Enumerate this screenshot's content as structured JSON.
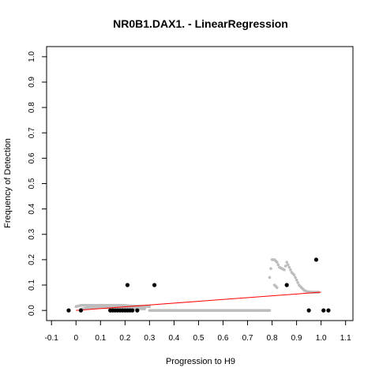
{
  "chart_data": {
    "type": "scatter",
    "title": "NR0B1.DAX1. - LinearRegression",
    "xlabel": "Progression to H9",
    "ylabel": "Frequency of Detection",
    "xlim": [
      -0.12,
      1.13
    ],
    "ylim": [
      -0.04,
      1.04
    ],
    "x_ticks": [
      "-0.1",
      "0",
      "0.1",
      "0.2",
      "0.3",
      "0.4",
      "0.5",
      "0.6",
      "0.7",
      "0.8",
      "0.9",
      "1.0",
      "1.1"
    ],
    "y_ticks": [
      "0.0",
      "0.1",
      "0.2",
      "0.3",
      "0.4",
      "0.5",
      "0.6",
      "0.7",
      "0.8",
      "0.9",
      "1.0"
    ],
    "grid": false,
    "legend": "none",
    "colors": {
      "observed": "#000000",
      "smoothed": "#bdbdbd",
      "regression": "#ff0000"
    },
    "series": [
      {
        "points": [
          [
            -0.03,
            0.0
          ],
          [
            0.02,
            0.0
          ],
          [
            0.14,
            0.0
          ],
          [
            0.15,
            0.0
          ],
          [
            0.16,
            0.0
          ],
          [
            0.17,
            0.0
          ],
          [
            0.18,
            0.0
          ],
          [
            0.19,
            0.0
          ],
          [
            0.2,
            0.0
          ],
          [
            0.21,
            0.0
          ],
          [
            0.22,
            0.0
          ],
          [
            0.23,
            0.0
          ],
          [
            0.25,
            0.0
          ],
          [
            0.21,
            0.1
          ],
          [
            0.32,
            0.1
          ],
          [
            0.86,
            0.1
          ],
          [
            0.95,
            0.0
          ],
          [
            0.98,
            0.2
          ],
          [
            1.01,
            0.0
          ],
          [
            1.03,
            0.0
          ]
        ]
      },
      {
        "segments": [
          [
            [
              0.0,
              0.015
            ],
            [
              0.02,
              0.02
            ],
            [
              0.04,
              0.02
            ],
            [
              0.07,
              0.02
            ],
            [
              0.1,
              0.02
            ],
            [
              0.13,
              0.02
            ],
            [
              0.16,
              0.02
            ],
            [
              0.19,
              0.02
            ],
            [
              0.22,
              0.018
            ],
            [
              0.25,
              0.017
            ],
            [
              0.28,
              0.016
            ],
            [
              0.3,
              0.015
            ]
          ],
          [
            [
              0.02,
              0.005
            ],
            [
              0.05,
              0.01
            ],
            [
              0.1,
              0.012
            ],
            [
              0.15,
              0.01
            ],
            [
              0.2,
              0.008
            ],
            [
              0.25,
              0.007
            ],
            [
              0.28,
              0.006
            ]
          ],
          [
            [
              0.3,
              0.0
            ],
            [
              0.35,
              0.0
            ],
            [
              0.4,
              0.0
            ],
            [
              0.45,
              0.0
            ],
            [
              0.5,
              0.0
            ],
            [
              0.55,
              0.0
            ],
            [
              0.6,
              0.0
            ],
            [
              0.65,
              0.0
            ],
            [
              0.7,
              0.0
            ],
            [
              0.75,
              0.0
            ],
            [
              0.79,
              0.0
            ]
          ],
          [
            [
              0.79,
              0.13
            ],
            [
              0.8,
              0.2
            ],
            [
              0.81,
              0.2
            ],
            [
              0.82,
              0.19
            ],
            [
              0.83,
              0.17
            ],
            [
              0.84,
              0.165
            ],
            [
              0.85,
              0.16
            ],
            [
              0.86,
              0.19
            ],
            [
              0.87,
              0.17
            ],
            [
              0.88,
              0.15
            ],
            [
              0.89,
              0.14
            ],
            [
              0.9,
              0.12
            ],
            [
              0.91,
              0.1
            ],
            [
              0.92,
              0.09
            ],
            [
              0.93,
              0.08
            ],
            [
              0.94,
              0.075
            ],
            [
              0.96,
              0.072
            ],
            [
              0.98,
              0.072
            ],
            [
              0.99,
              0.072
            ]
          ],
          [
            [
              0.81,
              0.1
            ],
            [
              0.82,
              0.09
            ]
          ]
        ]
      },
      {
        "line": [
          [
            0.0,
            0.0
          ],
          [
            1.0,
            0.072
          ]
        ]
      }
    ]
  }
}
